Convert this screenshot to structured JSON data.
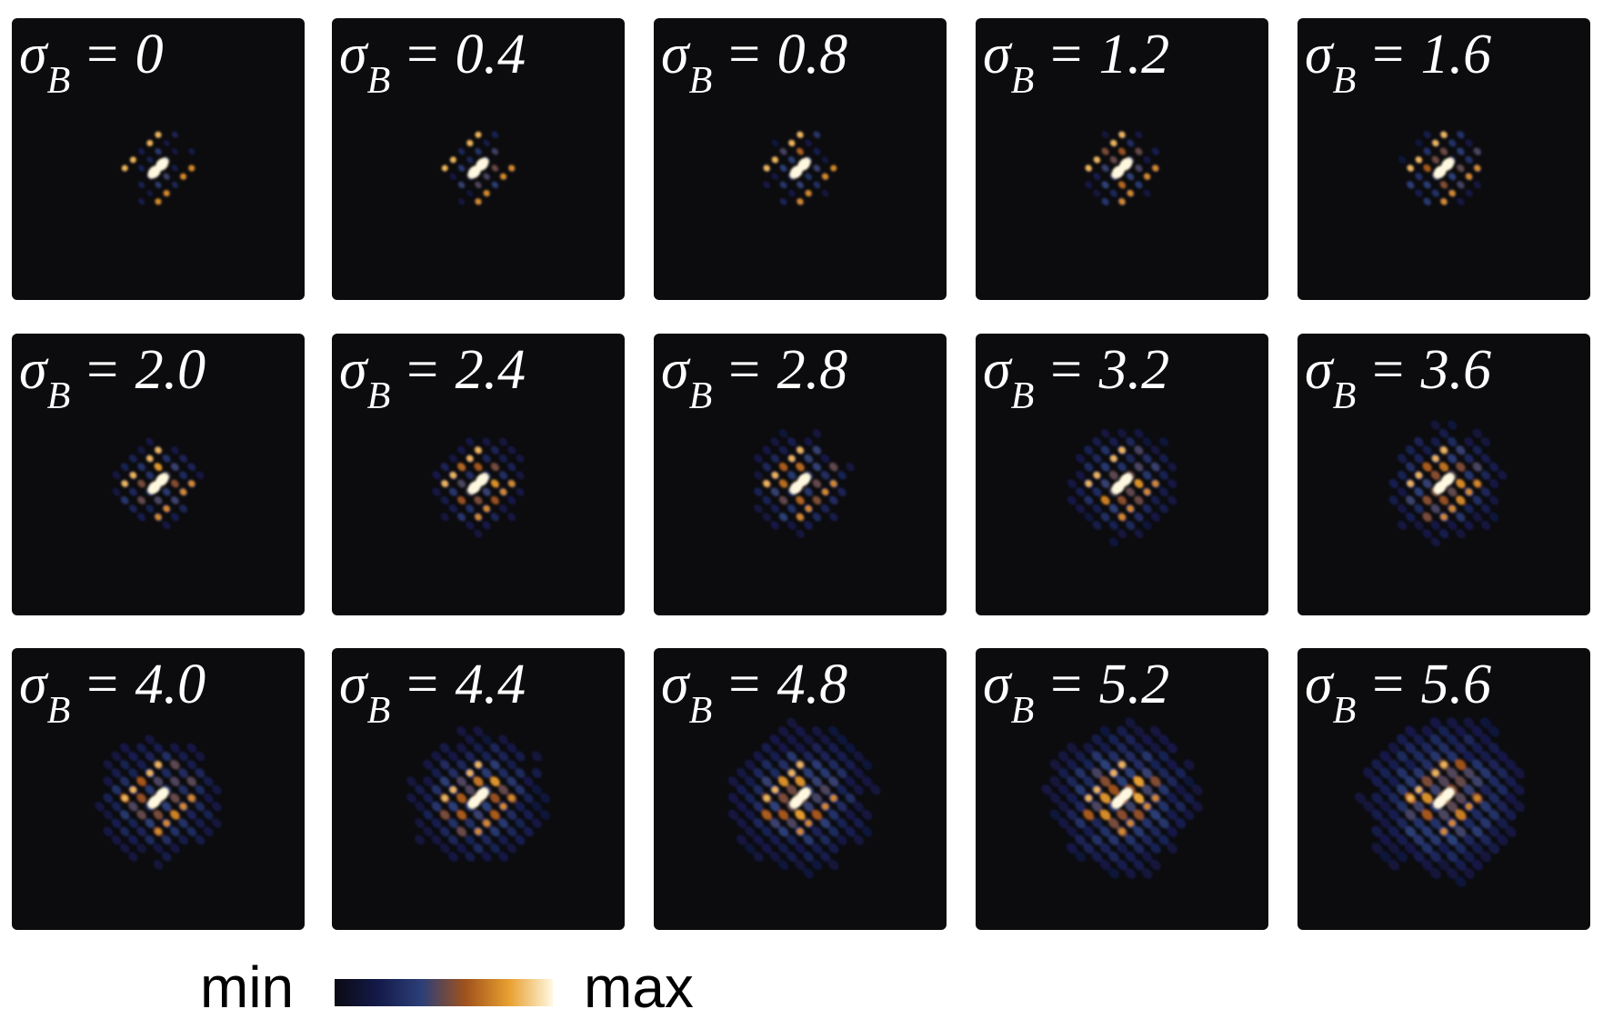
{
  "panels": [
    {
      "symbol": "σ",
      "subscript": "B",
      "text": "= 0"
    },
    {
      "symbol": "σ",
      "subscript": "B",
      "text": "= 0.4"
    },
    {
      "symbol": "σ",
      "subscript": "B",
      "text": "= 0.8"
    },
    {
      "symbol": "σ",
      "subscript": "B",
      "text": "= 1.2"
    },
    {
      "symbol": "σ",
      "subscript": "B",
      "text": "= 1.6"
    },
    {
      "symbol": "σ",
      "subscript": "B",
      "text": "= 2.0"
    },
    {
      "symbol": "σ",
      "subscript": "B",
      "text": "= 2.4"
    },
    {
      "symbol": "σ",
      "subscript": "B",
      "text": "= 2.8"
    },
    {
      "symbol": "σ",
      "subscript": "B",
      "text": "= 3.2"
    },
    {
      "symbol": "σ",
      "subscript": "B",
      "text": "= 3.6"
    },
    {
      "symbol": "σ",
      "subscript": "B",
      "text": "= 4.0"
    },
    {
      "symbol": "σ",
      "subscript": "B",
      "text": "= 4.4"
    },
    {
      "symbol": "σ",
      "subscript": "B",
      "text": "= 4.8"
    },
    {
      "symbol": "σ",
      "subscript": "B",
      "text": "= 5.2"
    },
    {
      "symbol": "σ",
      "subscript": "B",
      "text": "= 5.6"
    }
  ],
  "colorbar": {
    "min_label": "min",
    "max_label": "max"
  }
}
